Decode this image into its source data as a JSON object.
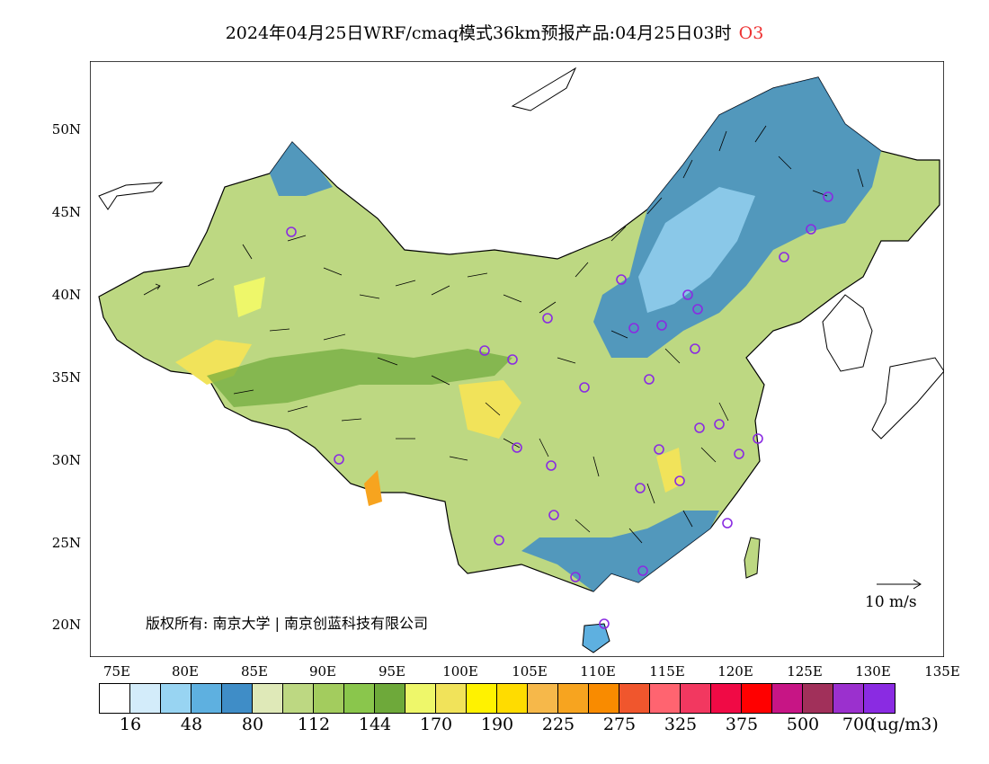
{
  "title": "2024年04月25日WRF/cmaq模式36km预报产品:04月25日03时",
  "pollutant": "O3",
  "lat_labels": [
    "50N",
    "45N",
    "40N",
    "35N",
    "30N",
    "25N",
    "20N"
  ],
  "lon_labels": [
    "75E",
    "80E",
    "85E",
    "90E",
    "95E",
    "100E",
    "105E",
    "110E",
    "115E",
    "120E",
    "125E",
    "130E",
    "135E"
  ],
  "copyright": "版权所有: 南京大学 | 南京创蓝科技有限公司",
  "wind_scale_label": "10 m/s",
  "colorbar": {
    "colors": [
      "#ffffff",
      "#d3ecfa",
      "#98d4f2",
      "#5eb0e0",
      "#3f8dc7",
      "#dfe9b8",
      "#bdd882",
      "#a3cc5e",
      "#8ac64c",
      "#6ea93a",
      "#eef76a",
      "#f1e35a",
      "#fff200",
      "#ffdc00",
      "#f6b84a",
      "#f7a41f",
      "#f98b00",
      "#f0562d",
      "#ff6470",
      "#f23860",
      "#f00a45",
      "#ff0000",
      "#c71585",
      "#a1305a",
      "#9b30ce",
      "#8a2be2"
    ],
    "labels": [
      "16",
      "48",
      "80",
      "112",
      "144",
      "170",
      "190",
      "225",
      "275",
      "325",
      "375",
      "500",
      "700"
    ],
    "unit": "(ug/m3)"
  }
}
